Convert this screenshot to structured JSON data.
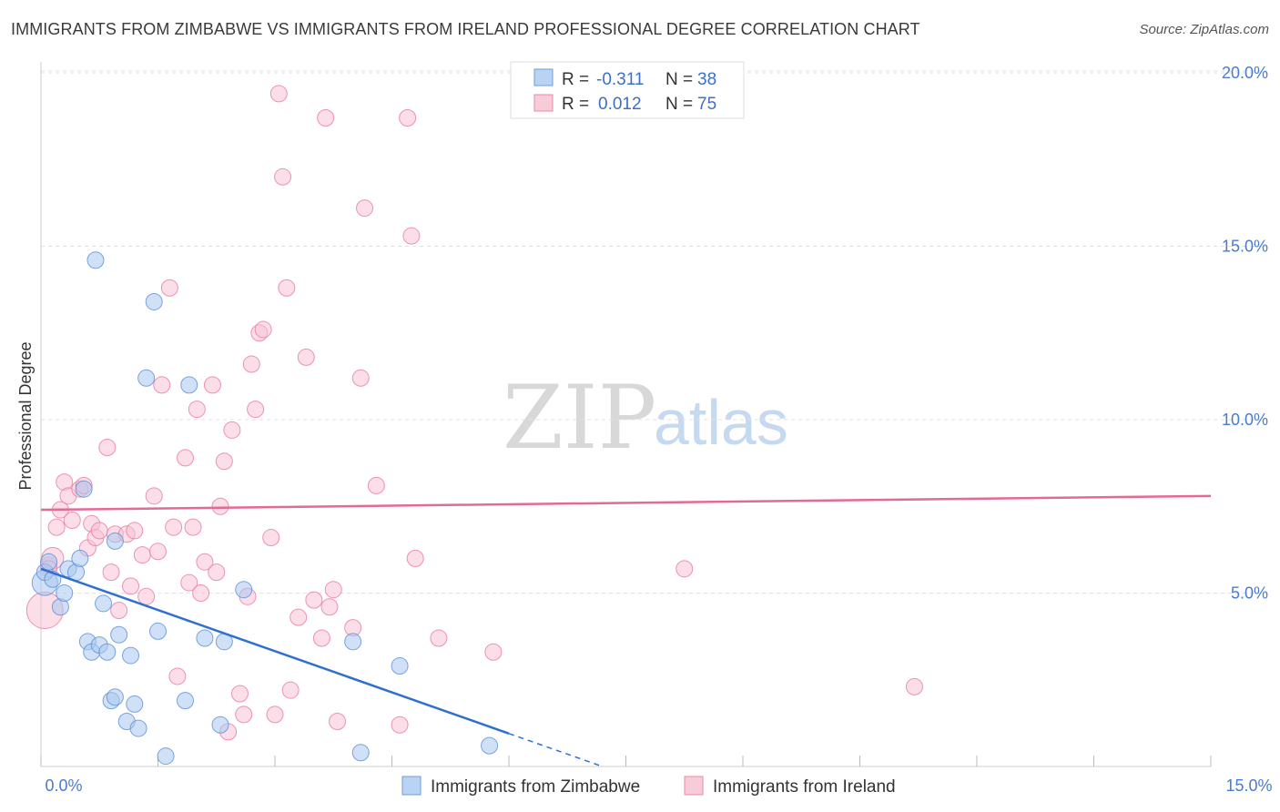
{
  "title": "IMMIGRANTS FROM ZIMBABWE VS IMMIGRANTS FROM IRELAND PROFESSIONAL DEGREE CORRELATION CHART",
  "source": "Source: ZipAtlas.com",
  "watermark": {
    "zip": "ZIP",
    "atlas": "atlas"
  },
  "chart_data": {
    "type": "scatter",
    "title": "IMMIGRANTS FROM ZIMBABWE VS IMMIGRANTS FROM IRELAND PROFESSIONAL DEGREE CORRELATION CHART",
    "xlabel": "",
    "ylabel": "Professional Degree",
    "xlim": [
      0,
      15
    ],
    "ylim": [
      0,
      20
    ],
    "x_tick_labels": [
      "0.0%",
      "15.0%"
    ],
    "y_ticks": [
      5,
      10,
      15,
      20
    ],
    "y_tick_labels": [
      "5.0%",
      "10.0%",
      "15.0%",
      "20.0%"
    ],
    "grid": true,
    "legend": {
      "position": "top-center",
      "entries": [
        {
          "r_label": "R =",
          "r_value": "-0.311",
          "n_label": "N =",
          "n_value": "38"
        },
        {
          "r_label": "R =",
          "r_value": "0.012",
          "n_label": "N =",
          "n_value": "75"
        }
      ]
    },
    "series": [
      {
        "name": "Immigrants from Zimbabwe",
        "color": "#5b8fd6",
        "fill": "#a9c9f0",
        "trend": {
          "x": [
            0.0,
            6.0
          ],
          "y": [
            5.7,
            0.95
          ]
        },
        "trend_dashed": {
          "x": [
            6.0,
            7.2
          ],
          "y": [
            0.95,
            0.0
          ]
        },
        "points": [
          [
            0.05,
            5.3,
            14
          ],
          [
            0.05,
            5.6,
            9
          ],
          [
            0.1,
            5.9,
            9
          ],
          [
            0.15,
            5.4,
            9
          ],
          [
            0.25,
            4.6,
            9
          ],
          [
            0.3,
            5.0,
            9
          ],
          [
            0.35,
            5.7,
            9
          ],
          [
            0.45,
            5.6,
            9
          ],
          [
            0.5,
            6.0,
            9
          ],
          [
            0.55,
            8.0,
            9
          ],
          [
            0.6,
            3.6,
            9
          ],
          [
            0.65,
            3.3,
            9
          ],
          [
            0.7,
            14.6,
            9
          ],
          [
            0.75,
            3.5,
            9
          ],
          [
            0.8,
            4.7,
            9
          ],
          [
            0.85,
            3.3,
            9
          ],
          [
            0.9,
            1.9,
            9
          ],
          [
            0.95,
            2.0,
            9
          ],
          [
            0.95,
            6.5,
            9
          ],
          [
            1.0,
            3.8,
            9
          ],
          [
            1.1,
            1.3,
            9
          ],
          [
            1.15,
            3.2,
            9
          ],
          [
            1.2,
            1.8,
            9
          ],
          [
            1.25,
            1.1,
            9
          ],
          [
            1.35,
            11.2,
            9
          ],
          [
            1.45,
            13.4,
            9
          ],
          [
            1.5,
            3.9,
            9
          ],
          [
            1.6,
            0.3,
            9
          ],
          [
            1.85,
            1.9,
            9
          ],
          [
            1.9,
            11.0,
            9
          ],
          [
            2.1,
            3.7,
            9
          ],
          [
            2.3,
            1.2,
            9
          ],
          [
            2.35,
            3.6,
            9
          ],
          [
            2.6,
            5.1,
            9
          ],
          [
            4.0,
            3.6,
            9
          ],
          [
            4.1,
            0.4,
            9
          ],
          [
            4.6,
            2.9,
            9
          ],
          [
            5.75,
            0.6,
            9
          ]
        ]
      },
      {
        "name": "Immigrants from Ireland",
        "color": "#e87aa0",
        "fill": "#f7c3d4",
        "trend": {
          "x": [
            0.0,
            15.0
          ],
          "y": [
            7.4,
            7.8
          ]
        },
        "points": [
          [
            0.05,
            4.5,
            20
          ],
          [
            0.1,
            5.8,
            9
          ],
          [
            0.15,
            6.0,
            12
          ],
          [
            0.2,
            6.9,
            9
          ],
          [
            0.25,
            7.4,
            9
          ],
          [
            0.3,
            8.2,
            9
          ],
          [
            0.35,
            7.8,
            9
          ],
          [
            0.4,
            7.1,
            9
          ],
          [
            0.5,
            8.0,
            9
          ],
          [
            0.55,
            8.1,
            9
          ],
          [
            0.6,
            6.3,
            9
          ],
          [
            0.65,
            7.0,
            9
          ],
          [
            0.7,
            6.6,
            9
          ],
          [
            0.75,
            6.8,
            9
          ],
          [
            0.85,
            9.2,
            9
          ],
          [
            0.9,
            5.6,
            9
          ],
          [
            0.95,
            6.7,
            9
          ],
          [
            1.0,
            4.5,
            9
          ],
          [
            1.1,
            6.7,
            9
          ],
          [
            1.15,
            5.2,
            9
          ],
          [
            1.2,
            6.8,
            9
          ],
          [
            1.3,
            6.1,
            9
          ],
          [
            1.35,
            4.9,
            9
          ],
          [
            1.45,
            7.8,
            9
          ],
          [
            1.5,
            6.2,
            9
          ],
          [
            1.55,
            11.0,
            9
          ],
          [
            1.65,
            13.8,
            9
          ],
          [
            1.7,
            6.9,
            9
          ],
          [
            1.75,
            2.6,
            9
          ],
          [
            1.85,
            8.9,
            9
          ],
          [
            1.9,
            5.3,
            9
          ],
          [
            1.95,
            6.9,
            9
          ],
          [
            2.0,
            10.3,
            9
          ],
          [
            2.05,
            5.0,
            9
          ],
          [
            2.1,
            5.9,
            9
          ],
          [
            2.2,
            11.0,
            9
          ],
          [
            2.25,
            5.6,
            9
          ],
          [
            2.3,
            7.5,
            9
          ],
          [
            2.35,
            8.8,
            9
          ],
          [
            2.4,
            1.0,
            9
          ],
          [
            2.45,
            9.7,
            9
          ],
          [
            2.55,
            2.1,
            9
          ],
          [
            2.6,
            1.5,
            9
          ],
          [
            2.65,
            4.9,
            9
          ],
          [
            2.7,
            11.6,
            9
          ],
          [
            2.75,
            10.3,
            9
          ],
          [
            2.8,
            12.5,
            9
          ],
          [
            2.85,
            12.6,
            9
          ],
          [
            2.95,
            6.6,
            9
          ],
          [
            3.0,
            1.5,
            9
          ],
          [
            3.05,
            19.4,
            9
          ],
          [
            3.1,
            17.0,
            9
          ],
          [
            3.15,
            13.8,
            9
          ],
          [
            3.2,
            2.2,
            9
          ],
          [
            3.3,
            4.3,
            9
          ],
          [
            3.4,
            11.8,
            9
          ],
          [
            3.5,
            4.8,
            9
          ],
          [
            3.6,
            3.7,
            9
          ],
          [
            3.65,
            18.7,
            9
          ],
          [
            3.7,
            4.6,
            9
          ],
          [
            3.75,
            5.1,
            9
          ],
          [
            3.8,
            1.3,
            9
          ],
          [
            4.0,
            4.0,
            9
          ],
          [
            4.1,
            11.2,
            9
          ],
          [
            4.15,
            16.1,
            9
          ],
          [
            4.3,
            8.1,
            9
          ],
          [
            4.6,
            1.2,
            9
          ],
          [
            4.7,
            18.7,
            9
          ],
          [
            4.75,
            15.3,
            9
          ],
          [
            4.8,
            6.0,
            9
          ],
          [
            5.1,
            3.7,
            9
          ],
          [
            5.8,
            3.3,
            9
          ],
          [
            8.25,
            5.7,
            9
          ],
          [
            11.2,
            2.3,
            9
          ],
          [
            0.1,
            5.7,
            9
          ]
        ]
      }
    ]
  }
}
